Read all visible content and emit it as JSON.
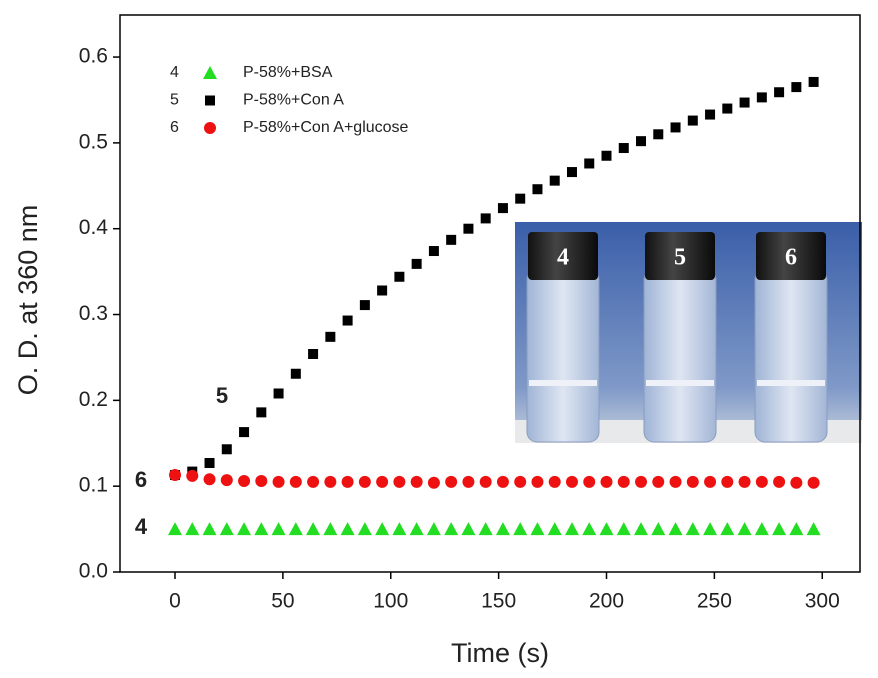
{
  "chart_data": {
    "type": "scatter",
    "x_label": "Time (s)",
    "y_label": "O. D. at 360 nm",
    "xlim": [
      -25.5,
      317.5
    ],
    "ylim": [
      0,
      0.649
    ],
    "xticks": [
      0,
      50,
      100,
      150,
      200,
      250,
      300
    ],
    "yticks": [
      {
        "value": 0,
        "label": "0.0"
      },
      0.1,
      0.2,
      0.3,
      0.4,
      0.5,
      0.6
    ],
    "x": [
      0,
      8,
      16,
      24,
      32,
      40,
      48,
      56,
      64,
      72,
      80,
      88,
      96,
      104,
      112,
      120,
      128,
      136,
      144,
      152,
      160,
      168,
      176,
      184,
      192,
      200,
      208,
      216,
      224,
      232,
      240,
      248,
      256,
      264,
      272,
      280,
      288,
      296
    ],
    "series": [
      {
        "id": "4",
        "name": "P-58%+BSA",
        "color": "#22dd22",
        "marker": "triangle",
        "values": [
          0.05,
          0.05,
          0.05,
          0.05,
          0.05,
          0.05,
          0.05,
          0.05,
          0.05,
          0.05,
          0.05,
          0.05,
          0.05,
          0.05,
          0.05,
          0.05,
          0.05,
          0.05,
          0.05,
          0.05,
          0.05,
          0.05,
          0.05,
          0.05,
          0.05,
          0.05,
          0.05,
          0.05,
          0.05,
          0.05,
          0.05,
          0.05,
          0.05,
          0.05,
          0.05,
          0.05,
          0.05,
          0.05
        ]
      },
      {
        "id": "5",
        "name": "P-58%+Con A",
        "color": "#000000",
        "marker": "square",
        "values": [
          0.113,
          0.117,
          0.127,
          0.143,
          0.163,
          0.186,
          0.208,
          0.231,
          0.254,
          0.274,
          0.293,
          0.311,
          0.328,
          0.344,
          0.359,
          0.374,
          0.387,
          0.4,
          0.412,
          0.424,
          0.435,
          0.446,
          0.456,
          0.466,
          0.476,
          0.485,
          0.494,
          0.502,
          0.51,
          0.518,
          0.526,
          0.533,
          0.54,
          0.547,
          0.553,
          0.559,
          0.565,
          0.571
        ]
      },
      {
        "id": "6",
        "name": "P-58%+Con A+glucose",
        "color": "#ee1111",
        "marker": "circle",
        "values": [
          0.113,
          0.112,
          0.108,
          0.107,
          0.106,
          0.106,
          0.105,
          0.105,
          0.105,
          0.105,
          0.105,
          0.105,
          0.105,
          0.105,
          0.105,
          0.104,
          0.105,
          0.105,
          0.105,
          0.105,
          0.105,
          0.105,
          0.105,
          0.105,
          0.105,
          0.105,
          0.105,
          0.105,
          0.105,
          0.105,
          0.105,
          0.105,
          0.105,
          0.105,
          0.105,
          0.105,
          0.104,
          0.104
        ]
      }
    ],
    "annotations": [
      "5",
      "6",
      "4"
    ],
    "inset_labels": [
      "4",
      "5",
      "6"
    ]
  }
}
